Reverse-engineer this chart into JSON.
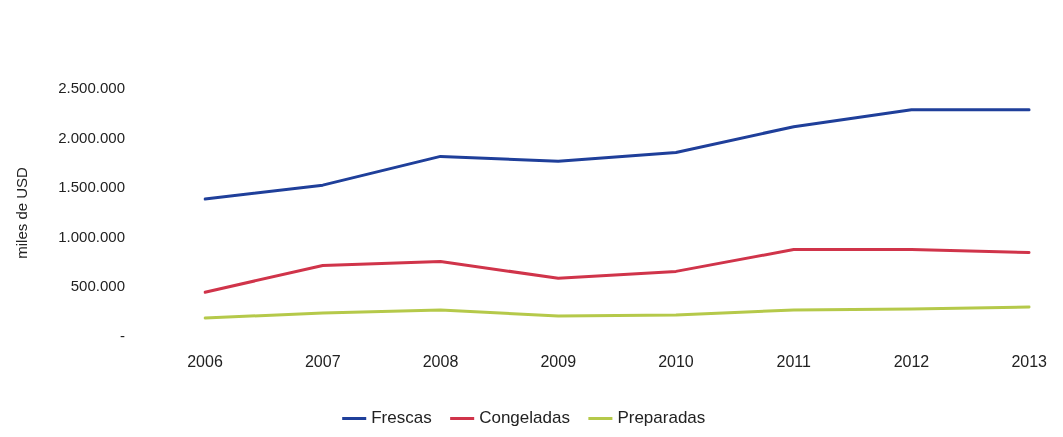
{
  "chart_data": {
    "type": "line",
    "ylabel": "miles de USD",
    "categories": [
      "2006",
      "2007",
      "2008",
      "2009",
      "2010",
      "2011",
      "2012",
      "2013"
    ],
    "series": [
      {
        "name": "Frescas",
        "color": "#1f3f9a",
        "values": [
          1390000,
          1530000,
          1820000,
          1770000,
          1860000,
          2120000,
          2290000,
          2290000
        ]
      },
      {
        "name": "Congeladas",
        "color": "#d0344a",
        "values": [
          450000,
          720000,
          760000,
          590000,
          660000,
          880000,
          880000,
          850000
        ]
      },
      {
        "name": "Preparadas",
        "color": "#b5c94a",
        "values": [
          190000,
          240000,
          270000,
          210000,
          220000,
          270000,
          280000,
          300000
        ]
      }
    ],
    "ylim": [
      0,
      2500000
    ],
    "yticks": [
      {
        "value": 0,
        "label": "-"
      },
      {
        "value": 500000,
        "label": "500.000"
      },
      {
        "value": 1000000,
        "label": "1.000.000"
      },
      {
        "value": 1500000,
        "label": "1.500.000"
      },
      {
        "value": 2000000,
        "label": "2.000.000"
      },
      {
        "value": 2500000,
        "label": "2.500.000"
      }
    ],
    "grid": false,
    "legend": "bottom",
    "marker": "none",
    "line_style": "solid"
  }
}
